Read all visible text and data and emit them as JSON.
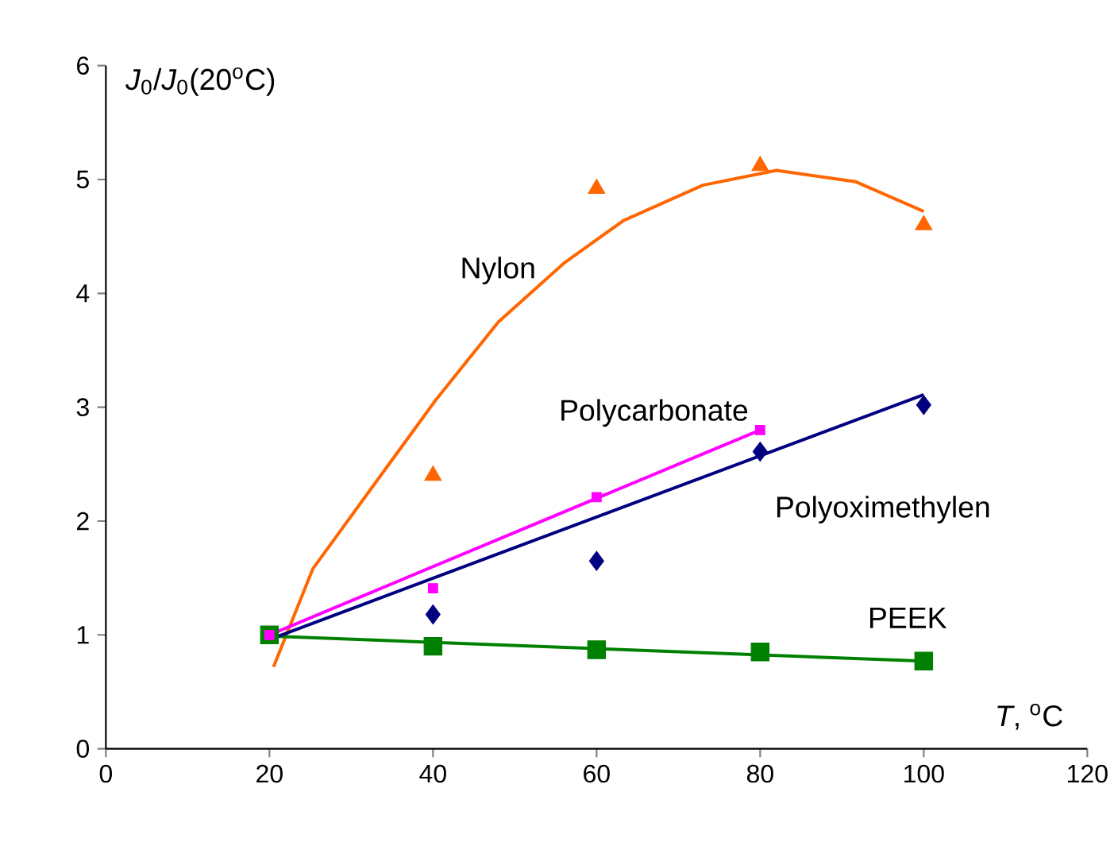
{
  "chart_data": {
    "type": "scatter",
    "ylabel": "*J*$_{0}$/*J*$_{0}$(20$^{o}$C)",
    "xlabel": "*T*, $^{o}$C",
    "xlim": [
      0,
      120
    ],
    "xticks": [
      0,
      20,
      40,
      60,
      80,
      100,
      120
    ],
    "ylim": [
      0,
      6
    ],
    "yticks": [
      0,
      1,
      2,
      3,
      4,
      5,
      6
    ],
    "grid": false,
    "legend": false,
    "series": [
      {
        "type": "line",
        "marker": "none",
        "color": "#ff6600",
        "x": [
          20.5,
          25.3,
          33.4,
          40.3,
          48,
          56.1,
          63.3,
          73,
          82,
          91.7,
          100
        ],
        "values": [
          0.72,
          1.58,
          2.38,
          3.06,
          3.75,
          4.27,
          4.64,
          4.95,
          5.08,
          4.98,
          4.72
        ]
      },
      {
        "name": "Nylon",
        "marker": "triangle",
        "color": "#ff6600",
        "x": [
          40,
          60,
          80,
          100
        ],
        "values": [
          2.4,
          4.92,
          5.12,
          4.6
        ]
      },
      {
        "type": "line",
        "marker": "none",
        "color": "#008000",
        "x": [
          20,
          100
        ],
        "values": [
          0.99,
          0.77
        ]
      },
      {
        "name": "PEEK",
        "marker": "square",
        "color": "#008000",
        "x": [
          20,
          40,
          60,
          80,
          100
        ],
        "values": [
          1.0,
          0.9,
          0.87,
          0.85,
          0.77
        ]
      },
      {
        "type": "line",
        "marker": "none",
        "color": "#000080",
        "x": [
          20,
          100
        ],
        "values": [
          0.96,
          3.11
        ]
      },
      {
        "name": "Polyoximethylen",
        "marker": "diamond",
        "color": "#000080",
        "x": [
          40,
          60,
          80,
          100
        ],
        "values": [
          1.18,
          1.65,
          2.61,
          3.02
        ]
      },
      {
        "type": "line",
        "marker": "none",
        "color": "#ff00ff",
        "x": [
          20,
          80
        ],
        "values": [
          1.0,
          2.8
        ]
      },
      {
        "name": "Polycarbonate",
        "marker": "square",
        "color": "#ff00ff",
        "x": [
          20,
          40,
          60,
          80
        ],
        "values": [
          1.0,
          1.41,
          2.21,
          2.8
        ]
      }
    ]
  }
}
